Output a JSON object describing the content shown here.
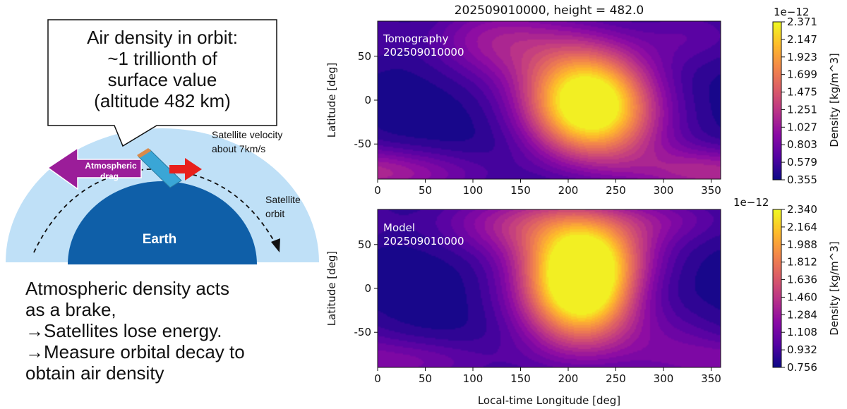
{
  "illustration": {
    "callout_lines": [
      "Air density in orbit:",
      "~1 trillionth of",
      "surface value",
      "(altitude 482 km)"
    ],
    "drag_label_lines": [
      "Atmospheric",
      "drag"
    ],
    "velocity_label_lines": [
      "Satellite velocity",
      "about 7km/s"
    ],
    "orbit_label_lines": [
      "Satellite",
      "orbit"
    ],
    "earth_label": "Earth",
    "caption_lines": [
      "Atmospheric density acts",
      "as a brake,",
      "→Satellites lose energy.",
      "→Measure orbital decay to",
      "obtain air density"
    ],
    "colors": {
      "atmosphere": "#bfe0f7",
      "earth": "#0f5fa8",
      "drag_arrow": "#9b1d99",
      "velocity_arrow": "#e8201c",
      "satellite": "#3aa6d6"
    }
  },
  "chart_data": [
    {
      "type": "heatmap",
      "title": "202509010000, height = 482.0",
      "annotation_lines": [
        "Tomography",
        "202509010000"
      ],
      "xlabel": "",
      "ylabel": "Latitude [deg]",
      "xlim": [
        0,
        360
      ],
      "ylim": [
        -90,
        90
      ],
      "xticks": [
        0,
        50,
        100,
        150,
        200,
        250,
        300,
        350
      ],
      "yticks": [
        50,
        0,
        -50
      ],
      "colormap": "plasma",
      "colorbar": {
        "label": "Density [kg/m^3]",
        "offset_text": "1e−12",
        "min": 0.355,
        "max": 2.371,
        "ticks": [
          0.355,
          0.579,
          0.803,
          1.027,
          1.251,
          1.475,
          1.699,
          1.923,
          2.147,
          2.371
        ]
      },
      "field": {
        "base": 0.36,
        "bumps": [
          {
            "lon": 222,
            "lat": -5,
            "amp": 2.0,
            "sx": 45,
            "sy": 40
          },
          {
            "lon": 200,
            "lat": 40,
            "amp": 0.45,
            "sx": 60,
            "sy": 40
          },
          {
            "lon": 250,
            "lat": -45,
            "amp": 0.35,
            "sx": 55,
            "sy": 35
          },
          {
            "lon": 120,
            "lat": 70,
            "amp": 0.55,
            "sx": 50,
            "sy": 30
          },
          {
            "lon": 330,
            "lat": 75,
            "amp": 0.3,
            "sx": 40,
            "sy": 25
          },
          {
            "lon": 30,
            "lat": -85,
            "amp": 0.5,
            "sx": 70,
            "sy": 20
          },
          {
            "lon": 330,
            "lat": -80,
            "amp": 0.35,
            "sx": 50,
            "sy": 20
          }
        ]
      }
    },
    {
      "type": "heatmap",
      "title": "",
      "annotation_lines": [
        "Model",
        "202509010000"
      ],
      "xlabel": "Local-time Longitude [deg]",
      "ylabel": "Latitude [deg]",
      "xlim": [
        0,
        360
      ],
      "ylim": [
        -90,
        90
      ],
      "xticks": [
        0,
        50,
        100,
        150,
        200,
        250,
        300,
        350
      ],
      "yticks": [
        50,
        0,
        -50
      ],
      "colormap": "plasma",
      "colorbar": {
        "label": "Density [kg/m^3]",
        "offset_text": "1e−12",
        "min": 0.756,
        "max": 2.34,
        "ticks": [
          0.756,
          0.932,
          1.108,
          1.284,
          1.46,
          1.636,
          1.812,
          1.988,
          2.164,
          2.34
        ]
      },
      "field": {
        "base": 0.76,
        "bumps": [
          {
            "lon": 218,
            "lat": 5,
            "amp": 1.55,
            "sx": 38,
            "sy": 45
          },
          {
            "lon": 185,
            "lat": 10,
            "amp": 0.5,
            "sx": 45,
            "sy": 60
          },
          {
            "lon": 240,
            "lat": 45,
            "amp": 0.4,
            "sx": 50,
            "sy": 30
          },
          {
            "lon": 140,
            "lat": 75,
            "amp": 0.45,
            "sx": 60,
            "sy": 25
          },
          {
            "lon": 300,
            "lat": 80,
            "amp": 0.3,
            "sx": 50,
            "sy": 20
          },
          {
            "lon": 300,
            "lat": -60,
            "amp": 0.25,
            "sx": 50,
            "sy": 30
          },
          {
            "lon": 30,
            "lat": -85,
            "amp": 0.35,
            "sx": 70,
            "sy": 20
          }
        ]
      }
    }
  ]
}
